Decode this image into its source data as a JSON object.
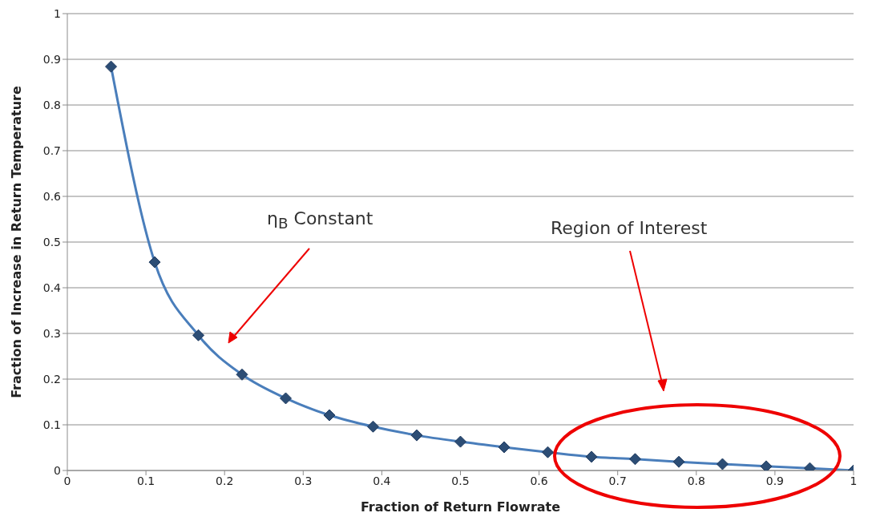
{
  "chart_data": {
    "type": "line",
    "xlabel": "Fraction of Return Flowrate",
    "ylabel": "Fraction of Increase in Return Temperature",
    "x": [
      0.0556,
      0.1111,
      0.1667,
      0.2222,
      0.2778,
      0.3333,
      0.3889,
      0.4444,
      0.5,
      0.5556,
      0.6111,
      0.6667,
      0.7222,
      0.7778,
      0.8333,
      0.8889,
      0.9444,
      1
    ],
    "series": [
      {
        "color": "#4a7ebb",
        "values": [
          0.884,
          0.456,
          0.296,
          0.21,
          0.158,
          0.121,
          0.096,
          0.077,
          0.063,
          0.051,
          0.04,
          0.03,
          0.025,
          0.019,
          0.014,
          0.009,
          0.005,
          0
        ]
      }
    ],
    "xlim": [
      0,
      1
    ],
    "xticks": [
      0,
      0.1,
      0.2,
      0.3,
      0.4,
      0.5,
      0.6,
      0.7,
      0.8,
      0.9,
      1
    ],
    "ylim": [
      0,
      1
    ],
    "yticks": [
      0,
      0.1,
      0.2,
      0.3,
      0.4,
      0.5,
      0.6,
      0.7,
      0.8,
      0.9,
      1
    ],
    "grid": "y",
    "legend": false,
    "marker": "diamond",
    "line_style": "solid",
    "annotations": [
      "η$_{B}$ Constant",
      "Region of Interest"
    ]
  }
}
